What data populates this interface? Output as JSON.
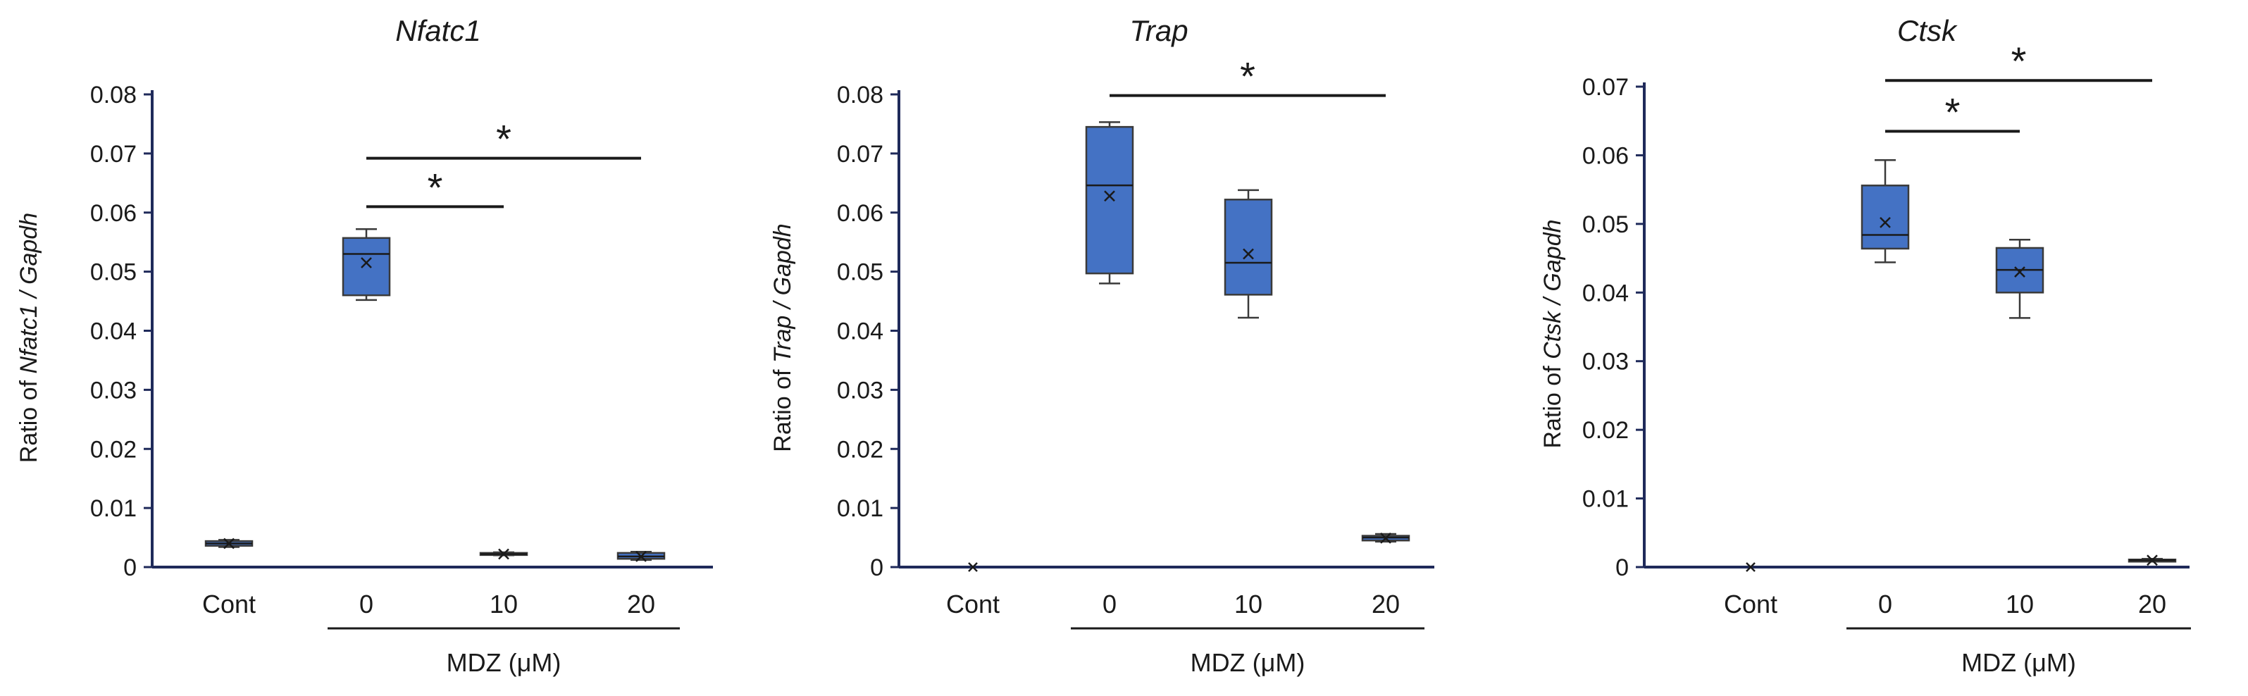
{
  "chart_data": [
    {
      "type": "box",
      "title": "Nfatc1",
      "ylabel": {
        "prefix": "Ratio of ",
        "italic": "Nfatc1 / Gapdh"
      },
      "ylim": [
        0,
        0.08
      ],
      "yticks": [
        0,
        0.01,
        0.02,
        0.03,
        0.04,
        0.05,
        0.06,
        0.07,
        0.08
      ],
      "ytick_labels": [
        "0",
        "0.01",
        "0.02",
        "0.03",
        "0.04",
        "0.05",
        "0.06",
        "0.07",
        "0.08"
      ],
      "categories": [
        "Cont",
        "0",
        "10",
        "20"
      ],
      "group_label": "MDZ (μM)",
      "boxes": [
        {
          "category": "Cont",
          "min": 0.0034,
          "q1": 0.0036,
          "median": 0.004,
          "q3": 0.0044,
          "max": 0.0046,
          "mean": 0.004
        },
        {
          "category": "0",
          "min": 0.0452,
          "q1": 0.046,
          "median": 0.053,
          "q3": 0.0557,
          "max": 0.0572,
          "mean": 0.0515
        },
        {
          "category": "10",
          "min": 0.002,
          "q1": 0.0021,
          "median": 0.0022,
          "q3": 0.0024,
          "max": 0.0025,
          "mean": 0.0022
        },
        {
          "category": "20",
          "min": 0.0012,
          "q1": 0.0014,
          "median": 0.0018,
          "q3": 0.0024,
          "max": 0.0026,
          "mean": 0.0018
        }
      ],
      "significance": [
        {
          "from": "0",
          "to": "10",
          "y": 0.061,
          "label": "*"
        },
        {
          "from": "0",
          "to": "20",
          "y": 0.0692,
          "label": "*"
        }
      ]
    },
    {
      "type": "box",
      "title": "Trap",
      "ylabel": {
        "prefix": "Ratio of ",
        "italic": "Trap / Gapdh"
      },
      "ylim": [
        0,
        0.08
      ],
      "yticks": [
        0,
        0.01,
        0.02,
        0.03,
        0.04,
        0.05,
        0.06,
        0.07,
        0.08
      ],
      "ytick_labels": [
        "0",
        "0.01",
        "0.02",
        "0.03",
        "0.04",
        "0.05",
        "0.06",
        "0.07",
        "0.08"
      ],
      "categories": [
        "Cont",
        "0",
        "10",
        "20"
      ],
      "group_label": "MDZ (μM)",
      "boxes": [
        {
          "category": "Cont",
          "min": 0.0,
          "q1": 0.0,
          "median": 0.0,
          "q3": 0.0,
          "max": 0.0,
          "mean": 0.0
        },
        {
          "category": "0",
          "min": 0.048,
          "q1": 0.0497,
          "median": 0.0646,
          "q3": 0.0745,
          "max": 0.0753,
          "mean": 0.0628
        },
        {
          "category": "10",
          "min": 0.0422,
          "q1": 0.0461,
          "median": 0.0515,
          "q3": 0.0622,
          "max": 0.0638,
          "mean": 0.053
        },
        {
          "category": "20",
          "min": 0.0043,
          "q1": 0.0045,
          "median": 0.005,
          "q3": 0.0053,
          "max": 0.0056,
          "mean": 0.0049
        }
      ],
      "significance": [
        {
          "from": "0",
          "to": "20",
          "y": 0.0798,
          "label": "*"
        }
      ]
    },
    {
      "type": "box",
      "title": "Ctsk",
      "ylabel": {
        "prefix": "Ratio of ",
        "italic": "Ctsk / Gapdh"
      },
      "ylim": [
        0,
        0.07
      ],
      "yticks": [
        0,
        0.01,
        0.02,
        0.03,
        0.04,
        0.05,
        0.06,
        0.07
      ],
      "ytick_labels": [
        "0",
        "0.01",
        "0.02",
        "0.03",
        "0.04",
        "0.05",
        "0.06",
        "0.07"
      ],
      "categories": [
        "Cont",
        "0",
        "10",
        "20"
      ],
      "group_label": "MDZ (μM)",
      "boxes": [
        {
          "category": "Cont",
          "min": 0.0,
          "q1": 0.0,
          "median": 0.0,
          "q3": 0.0,
          "max": 0.0,
          "mean": 0.0
        },
        {
          "category": "0",
          "min": 0.0444,
          "q1": 0.0464,
          "median": 0.0484,
          "q3": 0.0556,
          "max": 0.0593,
          "mean": 0.0502
        },
        {
          "category": "10",
          "min": 0.0363,
          "q1": 0.04,
          "median": 0.0433,
          "q3": 0.0465,
          "max": 0.0477,
          "mean": 0.043
        },
        {
          "category": "20",
          "min": 0.0008,
          "q1": 0.0009,
          "median": 0.001,
          "q3": 0.0011,
          "max": 0.0012,
          "mean": 0.001
        }
      ],
      "significance": [
        {
          "from": "0",
          "to": "10",
          "y": 0.0635,
          "label": "*"
        },
        {
          "from": "0",
          "to": "20",
          "y": 0.0709,
          "label": "*"
        }
      ]
    }
  ],
  "style": {
    "box_fill": "#4472c4",
    "box_stroke": "#3a3a3a",
    "axis_color": "#1f2a5a",
    "text_color": "#1a1a1a"
  }
}
